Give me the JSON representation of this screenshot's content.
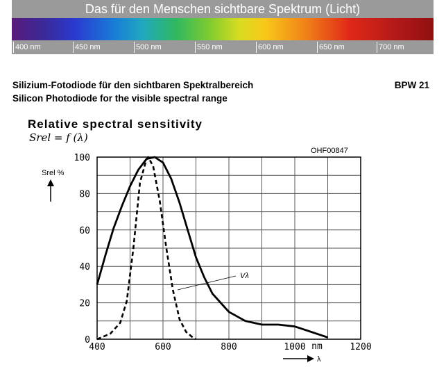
{
  "banner": {
    "title": "Das für den Menschen sichtbare Spektrum (Licht)",
    "ticks": [
      "400 nm",
      "450 nm",
      "500 nm",
      "550 nm",
      "600 nm",
      "650 nm",
      "700 nm"
    ]
  },
  "header": {
    "title_de": "Silizium-Fotodiode für den sichtbaren Spektralbereich",
    "title_en": "Silicon Photodiode for the visible spectral range",
    "part_number": "BPW 21"
  },
  "chart_data": {
    "type": "line",
    "title": "Relative spectral sensitivity",
    "subtitle": "Srel = f (λ)",
    "figure_id": "OHF00847",
    "ylabel": "Srel %",
    "xlabel": "λ",
    "x_unit": "nm",
    "xlim": [
      400,
      1200
    ],
    "ylim": [
      0,
      100
    ],
    "x_ticks": [
      400,
      600,
      800,
      1000,
      1200
    ],
    "y_ticks": [
      0,
      20,
      40,
      60,
      80,
      100
    ],
    "grid": true,
    "series": [
      {
        "style": "solid",
        "x": [
          400,
          425,
          450,
          475,
          500,
          525,
          550,
          575,
          600,
          625,
          650,
          675,
          700,
          725,
          750,
          800,
          850,
          900,
          950,
          1000,
          1050,
          1100
        ],
        "y": [
          30,
          46,
          61,
          73,
          84,
          93,
          99,
          100,
          97,
          88,
          75,
          60,
          45,
          34,
          25,
          15,
          10,
          8,
          8,
          7,
          4,
          1
        ]
      },
      {
        "name": "Vλ",
        "style": "dashed",
        "x": [
          400,
          440,
          470,
          490,
          510,
          530,
          550,
          555,
          570,
          590,
          610,
          630,
          650,
          670,
          690,
          700
        ],
        "y": [
          0,
          3,
          9,
          21,
          50,
          86,
          99,
          100,
          95,
          76,
          50,
          27,
          11,
          4,
          1,
          0
        ]
      }
    ]
  }
}
